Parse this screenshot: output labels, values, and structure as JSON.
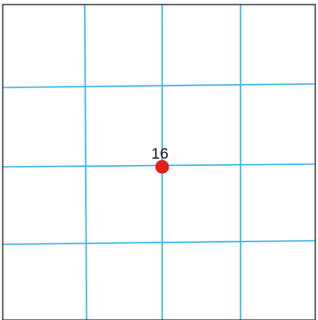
{
  "grid": {
    "line_color": "#3fb8e8",
    "border_color": "#222222",
    "background": "#ffffff",
    "columns": 4,
    "rows": 4
  },
  "marked_point": {
    "label": "16",
    "color": "#e0201a",
    "label_color": "#1a1a1a",
    "grid_col": 2,
    "grid_row": 2
  }
}
